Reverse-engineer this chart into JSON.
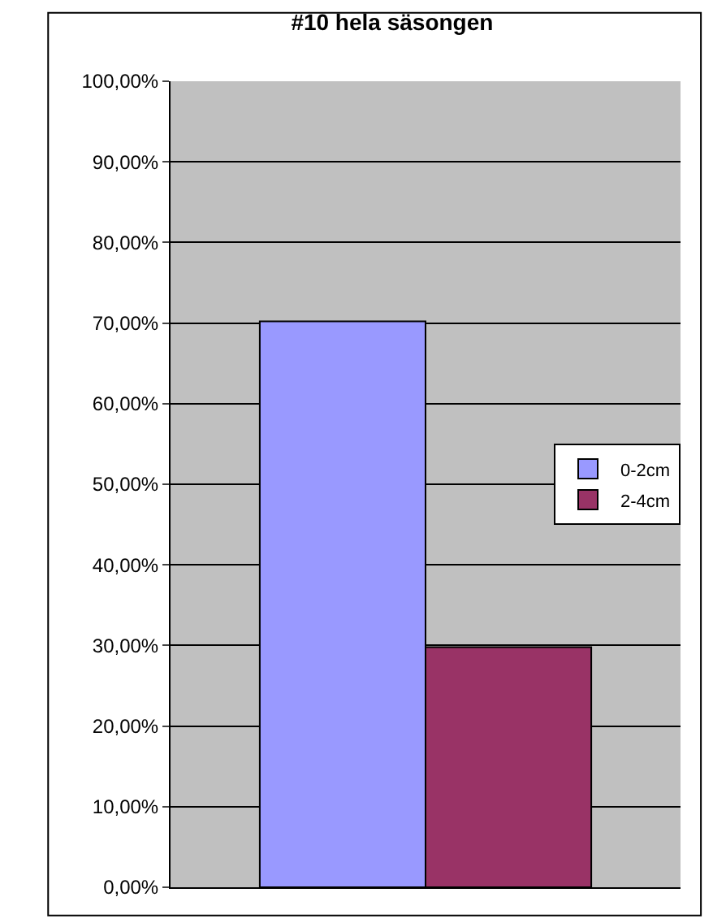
{
  "chart_data": {
    "type": "bar",
    "title": "#10 hela säsongen",
    "categories": [
      null
    ],
    "series": [
      {
        "name": "0-2cm",
        "color": "#9999ff",
        "values": [
          70.2
        ]
      },
      {
        "name": "2-4cm",
        "color": "#993366",
        "values": [
          29.8
        ]
      }
    ],
    "ylim": [
      0,
      100
    ],
    "yticks": [
      {
        "value": 0,
        "label": "0,00%"
      },
      {
        "value": 10,
        "label": "10,00%"
      },
      {
        "value": 20,
        "label": "20,00%"
      },
      {
        "value": 30,
        "label": "30,00%"
      },
      {
        "value": 40,
        "label": "40,00%"
      },
      {
        "value": 50,
        "label": "50,00%"
      },
      {
        "value": 60,
        "label": "60,00%"
      },
      {
        "value": 70,
        "label": "70,00%"
      },
      {
        "value": 80,
        "label": "80,00%"
      },
      {
        "value": 90,
        "label": "90,00%"
      },
      {
        "value": 100,
        "label": "100,00%"
      }
    ],
    "grid": "y",
    "legend": "right"
  }
}
